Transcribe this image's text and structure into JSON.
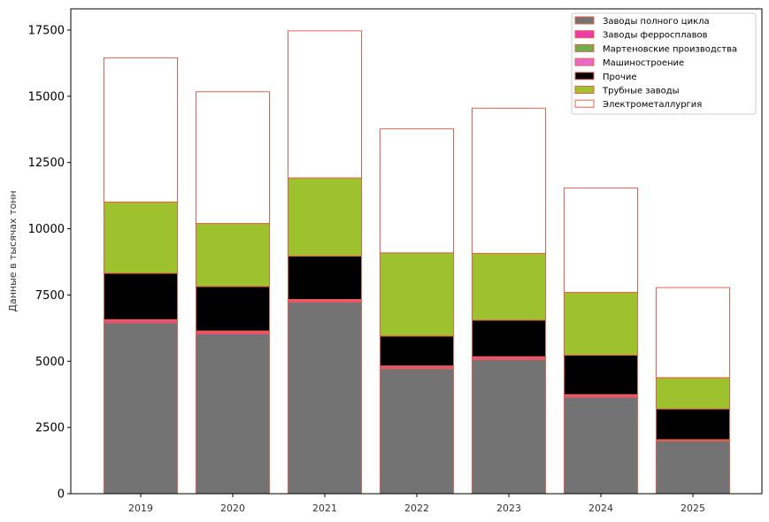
{
  "chart_data": {
    "type": "bar",
    "stacked": true,
    "categories": [
      "2019",
      "2020",
      "2021",
      "2022",
      "2023",
      "2024",
      "2025"
    ],
    "ylabel": "Данные в тысячах тонн",
    "xlabel": "",
    "ylim": [
      0,
      18300
    ],
    "yticks": [
      0,
      2500,
      5000,
      7500,
      10000,
      12500,
      15000,
      17500
    ],
    "legend_position": "top-right",
    "bar_edge_color": "#e8604c",
    "series": [
      {
        "name": "Заводы полного цикла",
        "color": "#737373",
        "values": [
          6450,
          6030,
          7230,
          4720,
          5060,
          3640,
          1990
        ]
      },
      {
        "name": "Заводы ферросплавов",
        "color": "#ee3aa6",
        "values": [
          80,
          70,
          60,
          60,
          70,
          60,
          30
        ]
      },
      {
        "name": "Мартеновские производства",
        "color": "#6ab04c",
        "values": [
          0,
          0,
          0,
          0,
          0,
          0,
          0
        ]
      },
      {
        "name": "Машиностроение",
        "color": "#e86acb",
        "values": [
          40,
          40,
          40,
          40,
          40,
          40,
          20
        ]
      },
      {
        "name": "Прочие",
        "color": "#000000",
        "values": [
          1750,
          1680,
          1640,
          1130,
          1380,
          1490,
          1160
        ]
      },
      {
        "name": "Трубные заводы",
        "color": "#9ec12e",
        "values": [
          2690,
          2380,
          2950,
          3140,
          2520,
          2370,
          1180
        ]
      },
      {
        "name": "Электрометаллургия",
        "color": "#ffffff",
        "values": [
          5440,
          4970,
          5550,
          4680,
          5480,
          3940,
          3400
        ]
      }
    ]
  }
}
